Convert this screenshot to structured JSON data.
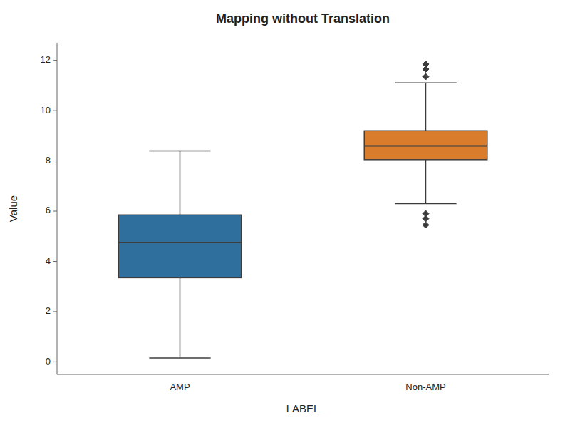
{
  "chart_data": {
    "type": "box",
    "title": "Mapping without Translation",
    "xlabel": "LABEL",
    "ylabel": "Value",
    "categories": [
      "AMP",
      "Non-AMP"
    ],
    "boxes": [
      {
        "q1": 3.35,
        "median": 4.75,
        "q3": 5.85,
        "whisker_low": 0.15,
        "whisker_high": 8.4,
        "fliers": []
      },
      {
        "q1": 8.05,
        "median": 8.6,
        "q3": 9.2,
        "whisker_low": 6.3,
        "whisker_high": 11.1,
        "fliers": [
          5.45,
          5.7,
          5.9,
          11.35,
          11.65,
          11.85
        ]
      }
    ],
    "colors": [
      "#2e6f9e",
      "#d97c2b"
    ],
    "color": "#3d3d3d",
    "marker": "diamond",
    "ylim": [
      -0.5,
      12.7
    ],
    "yticks": [
      0,
      2,
      4,
      6,
      8,
      10,
      12
    ],
    "grid": false
  }
}
